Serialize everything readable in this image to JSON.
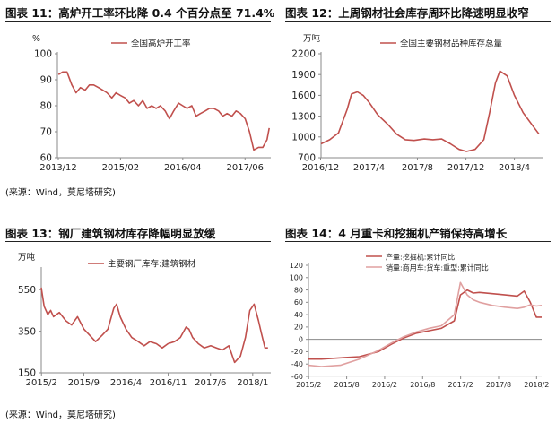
{
  "figures": [
    {
      "title": "图表 11：高炉开工率环比降 0.4 个百分点至 71.4%"
    },
    {
      "title": "图表 12：上周钢材社会库存周环比降速明显收窄"
    },
    {
      "title": "图表 13：钢厂建筑钢材库存降幅明显放缓"
    },
    {
      "title": "图表 14：4 月重卡和挖掘机产销保持高增长"
    }
  ],
  "sources": [
    "(来源：Wind，莫尼塔研究)",
    "(来源：Wind，莫尼塔研究)"
  ],
  "colors": {
    "series_primary": "#c0504d",
    "series_secondary": "#e0a0a0",
    "axis": "#8a8a8a",
    "tick_text": "#222222"
  },
  "chart_data": [
    {
      "type": "line",
      "unit": "%",
      "ylim": [
        60,
        100
      ],
      "yticks": [
        60,
        70,
        80,
        90,
        100
      ],
      "xlim": [
        2013.9,
        2017.9
      ],
      "xticks": [
        {
          "x": 2013.917,
          "label": "2013/12"
        },
        {
          "x": 2015.083,
          "label": "2015/02"
        },
        {
          "x": 2016.25,
          "label": "2016/04"
        },
        {
          "x": 2017.417,
          "label": "2017/06"
        }
      ],
      "legend": "top-left",
      "series": [
        {
          "name": "全国高炉开工率",
          "color": "#c0504d",
          "x": [
            2013.92,
            2014.0,
            2014.08,
            2014.17,
            2014.25,
            2014.33,
            2014.42,
            2014.5,
            2014.58,
            2014.67,
            2014.75,
            2014.83,
            2014.92,
            2015.0,
            2015.08,
            2015.17,
            2015.25,
            2015.33,
            2015.42,
            2015.5,
            2015.58,
            2015.67,
            2015.75,
            2015.83,
            2015.92,
            2016.0,
            2016.08,
            2016.17,
            2016.25,
            2016.33,
            2016.42,
            2016.5,
            2016.58,
            2016.67,
            2016.75,
            2016.83,
            2016.92,
            2017.0,
            2017.08,
            2017.17,
            2017.25,
            2017.33,
            2017.42,
            2017.5,
            2017.58,
            2017.67,
            2017.75,
            2017.83,
            2017.87
          ],
          "y": [
            92,
            93,
            93,
            88,
            85,
            87,
            86,
            88,
            88,
            87,
            86,
            85,
            83,
            85,
            84,
            83,
            81,
            82,
            80,
            82,
            79,
            80,
            79,
            80,
            78,
            75,
            78,
            81,
            80,
            79,
            80,
            76,
            77,
            78,
            79,
            79,
            78,
            76,
            77,
            76,
            78,
            77,
            75,
            70,
            63,
            64,
            64,
            67,
            71.4
          ]
        }
      ]
    },
    {
      "type": "line",
      "unit": "万吨",
      "ylim": [
        700,
        2200
      ],
      "yticks": [
        700,
        1000,
        1300,
        1600,
        1900,
        2200
      ],
      "xlim": [
        2016.92,
        2018.45
      ],
      "xticks": [
        {
          "x": 2016.917,
          "label": "2016/12"
        },
        {
          "x": 2017.25,
          "label": "2017/4"
        },
        {
          "x": 2017.583,
          "label": "2017/8"
        },
        {
          "x": 2017.917,
          "label": "2017/12"
        },
        {
          "x": 2018.25,
          "label": "2018/4"
        }
      ],
      "legend": "top",
      "series": [
        {
          "name": "全国主要钢材品种库存总量",
          "color": "#c0504d",
          "x": [
            2016.92,
            2016.98,
            2017.04,
            2017.1,
            2017.13,
            2017.17,
            2017.21,
            2017.25,
            2017.31,
            2017.38,
            2017.44,
            2017.5,
            2017.56,
            2017.63,
            2017.69,
            2017.75,
            2017.81,
            2017.87,
            2017.92,
            2017.98,
            2018.04,
            2018.08,
            2018.12,
            2018.15,
            2018.2,
            2018.25,
            2018.31,
            2018.38,
            2018.42
          ],
          "y": [
            900,
            960,
            1060,
            1400,
            1620,
            1650,
            1600,
            1500,
            1320,
            1180,
            1040,
            960,
            950,
            970,
            960,
            970,
            900,
            820,
            790,
            820,
            960,
            1350,
            1780,
            1950,
            1880,
            1600,
            1350,
            1150,
            1040
          ]
        }
      ]
    },
    {
      "type": "line",
      "unit": "万吨",
      "ylim": [
        150,
        650
      ],
      "yticks": [
        150,
        350,
        550
      ],
      "xlim": [
        2015.08,
        2018.25
      ],
      "xticks": [
        {
          "x": 2015.083,
          "label": "2015/2"
        },
        {
          "x": 2015.667,
          "label": "2015/9"
        },
        {
          "x": 2016.25,
          "label": "2016/4"
        },
        {
          "x": 2016.833,
          "label": "2016/11"
        },
        {
          "x": 2017.417,
          "label": "2017/6"
        },
        {
          "x": 2018.0,
          "label": "2018/1"
        }
      ],
      "legend": "top",
      "series": [
        {
          "name": "主要钢厂库存:建筑钢材",
          "color": "#c0504d",
          "x": [
            2015.08,
            2015.12,
            2015.17,
            2015.21,
            2015.25,
            2015.33,
            2015.42,
            2015.5,
            2015.58,
            2015.67,
            2015.75,
            2015.83,
            2015.92,
            2016.0,
            2016.08,
            2016.12,
            2016.17,
            2016.25,
            2016.33,
            2016.42,
            2016.5,
            2016.58,
            2016.67,
            2016.75,
            2016.83,
            2016.92,
            2017.0,
            2017.08,
            2017.12,
            2017.17,
            2017.25,
            2017.33,
            2017.42,
            2017.5,
            2017.58,
            2017.67,
            2017.75,
            2017.83,
            2017.9,
            2017.96,
            2018.02,
            2018.08,
            2018.12,
            2018.17,
            2018.21
          ],
          "y": [
            560,
            470,
            430,
            450,
            420,
            440,
            400,
            380,
            420,
            360,
            330,
            300,
            330,
            360,
            460,
            480,
            420,
            360,
            320,
            300,
            280,
            300,
            290,
            270,
            290,
            300,
            320,
            370,
            360,
            320,
            290,
            270,
            280,
            270,
            260,
            280,
            200,
            230,
            320,
            450,
            480,
            400,
            340,
            270,
            270
          ]
        }
      ]
    },
    {
      "type": "line",
      "unit": "",
      "ylim": [
        -60,
        120
      ],
      "yticks": [
        -60,
        -40,
        -20,
        0,
        20,
        40,
        60,
        80,
        100,
        120
      ],
      "xlim": [
        2015.08,
        2018.15
      ],
      "xticks": [
        {
          "x": 2015.083,
          "label": "2015/2"
        },
        {
          "x": 2015.583,
          "label": "2015/8"
        },
        {
          "x": 2016.083,
          "label": "2016/2"
        },
        {
          "x": 2016.583,
          "label": "2016/8"
        },
        {
          "x": 2017.083,
          "label": "2017/2"
        },
        {
          "x": 2017.583,
          "label": "2017/8"
        },
        {
          "x": 2018.083,
          "label": "2018/2"
        }
      ],
      "legend": "top-left",
      "series": [
        {
          "name": "产量:挖掘机:累计同比",
          "color": "#c0504d",
          "x": [
            2015.08,
            2015.25,
            2015.5,
            2015.75,
            2016.0,
            2016.17,
            2016.33,
            2016.5,
            2016.67,
            2016.83,
            2017.0,
            2017.08,
            2017.17,
            2017.25,
            2017.33,
            2017.5,
            2017.67,
            2017.83,
            2017.92,
            2018.0,
            2018.08,
            2018.15
          ],
          "y": [
            -32,
            -32,
            -30,
            -28,
            -20,
            -8,
            2,
            10,
            14,
            18,
            30,
            72,
            80,
            75,
            76,
            74,
            72,
            70,
            78,
            60,
            36,
            36
          ]
        },
        {
          "name": "销量:商用车:货车:重型:累计同比",
          "color": "#e0a0a0",
          "x": [
            2015.08,
            2015.25,
            2015.5,
            2015.75,
            2016.0,
            2016.17,
            2016.33,
            2016.5,
            2016.67,
            2016.83,
            2017.0,
            2017.08,
            2017.17,
            2017.25,
            2017.33,
            2017.5,
            2017.67,
            2017.83,
            2017.92,
            2018.0,
            2018.08,
            2018.15
          ],
          "y": [
            -42,
            -44,
            -42,
            -32,
            -18,
            -6,
            4,
            12,
            18,
            22,
            40,
            92,
            72,
            64,
            60,
            55,
            52,
            50,
            52,
            56,
            54,
            55
          ]
        }
      ]
    }
  ]
}
